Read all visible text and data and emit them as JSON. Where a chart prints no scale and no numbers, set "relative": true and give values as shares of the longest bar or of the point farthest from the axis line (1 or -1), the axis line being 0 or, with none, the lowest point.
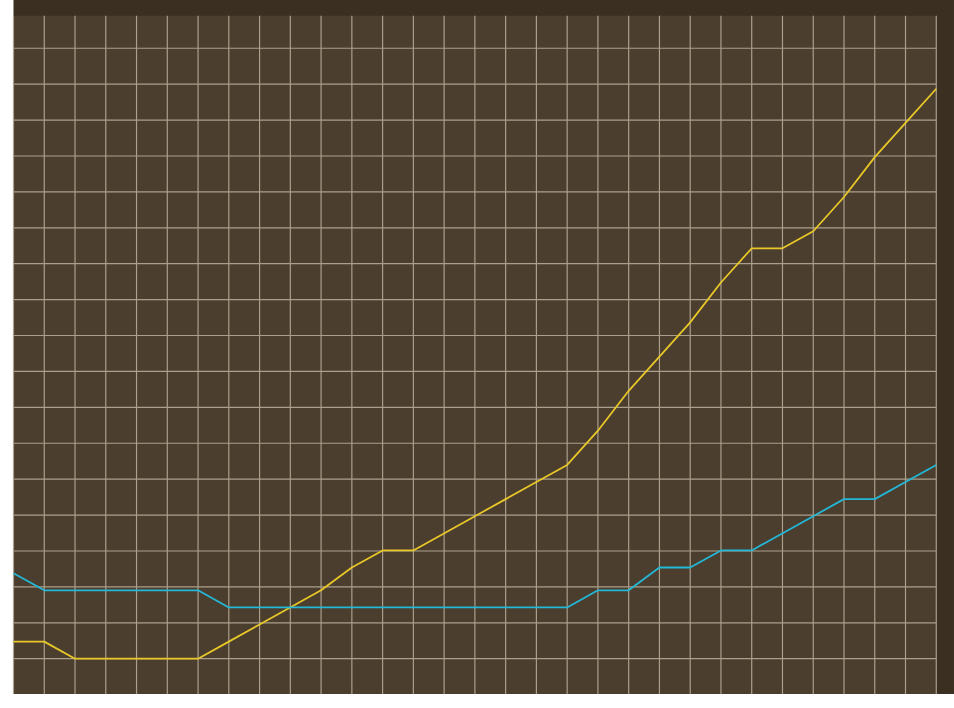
{
  "chart_data": {
    "type": "line",
    "relative": true,
    "grid": true,
    "marker": "none",
    "line_style": "solid",
    "categories": [
      null,
      null,
      null,
      null,
      null,
      null,
      null,
      null,
      null,
      null,
      null,
      null,
      null,
      null,
      null,
      null,
      null,
      null,
      null,
      null,
      null,
      null,
      null,
      null,
      null,
      null,
      null,
      null,
      null,
      null,
      null
    ],
    "series": [
      {
        "color": "#e8c828",
        "values": [
          0.03,
          0.03,
          0,
          0,
          0,
          0,
          0,
          0.03,
          0.06,
          0.09,
          0.12,
          0.16,
          0.19,
          0.19,
          0.22,
          0.25,
          0.28,
          0.31,
          0.34,
          0.4,
          0.47,
          0.53,
          0.59,
          0.66,
          0.72,
          0.72,
          0.75,
          0.81,
          0.88,
          0.94,
          1
        ]
      },
      {
        "color": "#22b8d8",
        "values": [
          0.15,
          0.12,
          0.12,
          0.12,
          0.12,
          0.12,
          0.12,
          0.09,
          0.09,
          0.09,
          0.09,
          0.09,
          0.09,
          0.09,
          0.09,
          0.09,
          0.09,
          0.09,
          0.09,
          0.12,
          0.12,
          0.16,
          0.16,
          0.19,
          0.19,
          0.22,
          0.25,
          0.28,
          0.28,
          0.31,
          0.34
        ]
      }
    ]
  }
}
